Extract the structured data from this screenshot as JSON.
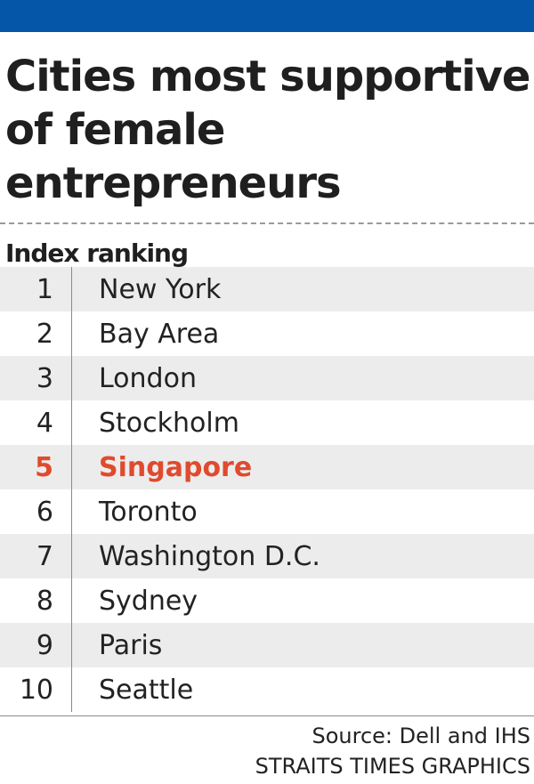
{
  "title": "Cities most supportive of female entrepreneurs",
  "colors": {
    "top_bar": "#0556a8",
    "highlight": "#e04a2e",
    "row_shade": "#ececec",
    "text": "#222222"
  },
  "chart_data": {
    "type": "table",
    "subtitle": "Index ranking",
    "columns": [
      "rank",
      "city"
    ],
    "highlight_rank": 5,
    "rows": [
      {
        "rank": "1",
        "city": "New York"
      },
      {
        "rank": "2",
        "city": "Bay Area"
      },
      {
        "rank": "3",
        "city": "London"
      },
      {
        "rank": "4",
        "city": "Stockholm"
      },
      {
        "rank": "5",
        "city": "Singapore"
      },
      {
        "rank": "6",
        "city": "Toronto"
      },
      {
        "rank": "7",
        "city": "Washington D.C."
      },
      {
        "rank": "8",
        "city": "Sydney"
      },
      {
        "rank": "9",
        "city": "Paris"
      },
      {
        "rank": "10",
        "city": "Seattle"
      }
    ]
  },
  "source": "Source: Dell and IHS",
  "credit": "STRAITS TIMES GRAPHICS"
}
